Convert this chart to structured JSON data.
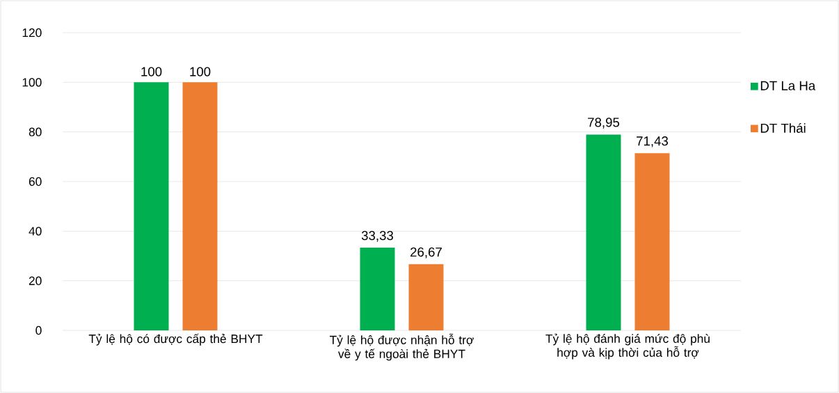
{
  "chart_data": {
    "type": "bar",
    "categories": [
      "Tỷ lệ hộ có được cấp thẻ BHYT",
      "Tỷ lệ hộ được nhận hỗ trợ về y tế ngoài thẻ BHYT",
      "Tỷ lệ hộ đánh giá mức độ phù hợp và kịp thời của hỗ trợ"
    ],
    "series": [
      {
        "name": "DT La Ha",
        "color": "#00b050",
        "values": [
          100,
          33.33,
          78.95
        ],
        "value_labels": [
          "100",
          "33,33",
          "78,95"
        ]
      },
      {
        "name": "DT Thái",
        "color": "#ed7d31",
        "values": [
          100,
          26.67,
          71.43
        ],
        "value_labels": [
          "100",
          "26,67",
          "71,43"
        ]
      }
    ],
    "ylim": [
      0,
      120
    ],
    "yticks": [
      0,
      20,
      40,
      60,
      80,
      100,
      120
    ],
    "grid": "y",
    "legend": "right"
  }
}
